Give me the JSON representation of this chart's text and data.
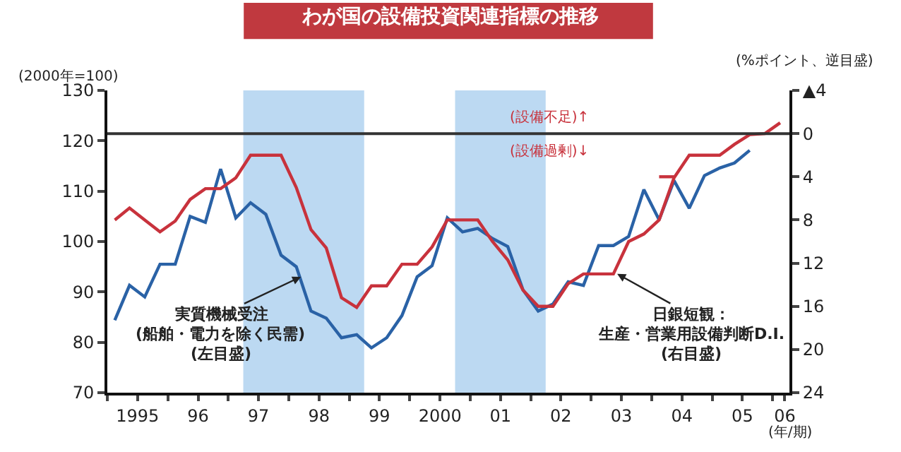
{
  "chart_data": {
    "type": "line",
    "title": "わが国の設備投資関連指標の推移",
    "ylabel": "(2000年=100)",
    "y2label": "(%ポイント、逆目盛)",
    "xlabel": "(年/期)",
    "xlim": [
      "1995-01-01",
      "2006-04-12"
    ],
    "xticks": [
      {
        "value": "1995-01-01",
        "label": null
      },
      {
        "value": "1995-07-02",
        "label": "1995"
      },
      {
        "value": "1996-01-01",
        "label": null
      },
      {
        "value": "1996-07-02",
        "label": "96"
      },
      {
        "value": "1997-01-01",
        "label": null
      },
      {
        "value": "1997-07-02",
        "label": "97"
      },
      {
        "value": "1998-01-01",
        "label": null
      },
      {
        "value": "1998-07-02",
        "label": "98"
      },
      {
        "value": "1999-01-01",
        "label": null
      },
      {
        "value": "1999-07-02",
        "label": "99"
      },
      {
        "value": "2000-01-01",
        "label": null
      },
      {
        "value": "2000-07-02",
        "label": "2000"
      },
      {
        "value": "2001-01-01",
        "label": null
      },
      {
        "value": "2001-07-02",
        "label": "01"
      },
      {
        "value": "2002-01-01",
        "label": null
      },
      {
        "value": "2002-07-02",
        "label": "02"
      },
      {
        "value": "2003-01-01",
        "label": null
      },
      {
        "value": "2003-07-02",
        "label": "03"
      },
      {
        "value": "2004-01-01",
        "label": null
      },
      {
        "value": "2004-07-02",
        "label": "04"
      },
      {
        "value": "2005-01-01",
        "label": null
      },
      {
        "value": "2005-07-02",
        "label": "05"
      },
      {
        "value": "2006-01-01",
        "label": null
      },
      {
        "value": "2006-03-15",
        "label": "06"
      }
    ],
    "ylim": [
      70,
      130
    ],
    "yticks": [
      70,
      80,
      90,
      100,
      110,
      120,
      130
    ],
    "y2lim": [
      24,
      -4
    ],
    "y2ticks": [
      {
        "value": -4,
        "label": "▲4"
      },
      0,
      4,
      8,
      12,
      16,
      20,
      24
    ],
    "marker": "none",
    "line_style": "solid",
    "grid": false,
    "series": [
      {
        "color": "#2a62a6",
        "axis": "y",
        "x": [
          "1995-02-15",
          "1995-05-15",
          "1995-08-15",
          "1995-11-15",
          "1996-02-15",
          "1996-05-15",
          "1996-08-15",
          "1996-11-15",
          "1997-02-15",
          "1997-05-15",
          "1997-08-15",
          "1997-11-15",
          "1998-02-15",
          "1998-05-15",
          "1998-08-15",
          "1998-11-15",
          "1999-02-15",
          "1999-05-15",
          "1999-08-15",
          "1999-11-15",
          "2000-02-15",
          "2000-05-15",
          "2000-08-15",
          "2000-11-15",
          "2001-02-15",
          "2001-05-15",
          "2001-08-15",
          "2001-11-15",
          "2002-02-15",
          "2002-05-15",
          "2002-08-15",
          "2002-11-15",
          "2003-02-15",
          "2003-05-15",
          "2003-08-15",
          "2003-11-15",
          "2004-02-15",
          "2004-05-15",
          "2004-08-15",
          "2004-11-15",
          "2005-02-15",
          "2005-05-15",
          "2005-08-15"
        ],
        "values": [
          84.4,
          91.3,
          89.0,
          95.5,
          95.5,
          105,
          103.8,
          114.4,
          104.7,
          107.7,
          105.4,
          97.3,
          95,
          86.2,
          84.8,
          80.9,
          81.5,
          78.9,
          80.9,
          85.3,
          93,
          95.2,
          104.7,
          101.9,
          102.6,
          100.6,
          99,
          90.4,
          86.2,
          87.6,
          92,
          91.3,
          99.2,
          99.2,
          101,
          110.3,
          104.3,
          112.1,
          106.6,
          113.1,
          114.6,
          115.6,
          118.1
        ]
      },
      {
        "color": "#c8323c",
        "axis": "y2",
        "x": [
          "1995-02-15",
          "1995-05-15",
          "1995-08-15",
          "1995-11-15",
          "1996-02-15",
          "1996-05-15",
          "1996-08-15",
          "1996-11-15",
          "1997-02-15",
          "1997-05-15",
          "1997-08-15",
          "1997-11-15",
          "1998-02-15",
          "1998-05-15",
          "1998-08-15",
          "1998-11-15",
          "1999-02-15",
          "1999-05-15",
          "1999-08-15",
          "1999-11-15",
          "2000-02-15",
          "2000-05-15",
          "2000-08-15",
          "2000-11-15",
          "2001-02-15",
          "2001-05-15",
          "2001-08-15",
          "2001-11-15",
          "2002-02-15",
          "2002-05-15",
          "2002-08-15",
          "2002-11-15",
          "2003-02-15",
          "2003-05-15",
          "2003-08-15",
          "2003-11-15",
          "2004-02-15",
          "2004-05-15",
          "2004-08-15",
          "2004-11-15",
          "2005-02-15",
          "2005-05-15",
          "2005-08-15",
          "2005-11-15",
          "2006-02-15"
        ],
        "values": [
          8.0,
          6.9,
          8.0,
          9.1,
          8.1,
          6.1,
          5.1,
          5.1,
          4.1,
          2.0,
          2.0,
          2.0,
          5.0,
          8.9,
          10.6,
          15.2,
          16.1,
          14.1,
          14.1,
          12.1,
          12.1,
          10.5,
          8.0,
          8.0,
          8.0,
          10.0,
          11.7,
          14.5,
          16.0,
          16.0,
          13.9,
          13.0,
          13.0,
          13.0,
          10.0,
          9.3,
          8.0,
          4.1,
          2.0,
          2.0,
          2.0,
          1.0,
          0.1,
          0,
          -1.0
        ]
      },
      {
        "color": "#c8323c",
        "axis": "y2",
        "x": [
          "2004-02-15",
          "2004-05-15"
        ],
        "values": [
          4.0,
          4.0
        ]
      }
    ],
    "bands": [
      {
        "axis": "x",
        "from": "1997-04-01",
        "to": "1999-04-01",
        "color": "#bcd9f2"
      },
      {
        "axis": "x",
        "from": "2000-10-01",
        "to": "2002-04-01",
        "color": "#bcd9f2"
      }
    ],
    "ref_lines": [
      {
        "axis": "y2",
        "value": 0,
        "color": "#333333",
        "line_style": "solid"
      }
    ],
    "annotations": [
      {
        "text": "実質機械受注",
        "x": "1998-03-15",
        "y": 93
      },
      "(船舶・電力を除く民需)",
      "(左目盛)",
      {
        "text": "日銀短観：",
        "x": "2003-06-07",
        "y": 93.6
      },
      "生産・営業用設備判断D.I.",
      "(右目盛)",
      "(設備不足)↑",
      "(設備過剰)↓"
    ]
  }
}
